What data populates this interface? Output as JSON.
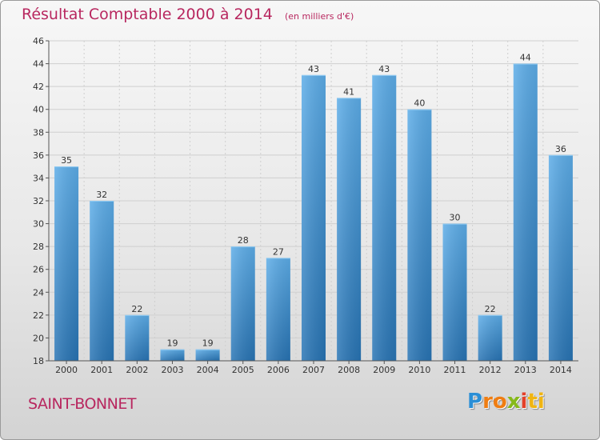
{
  "chart_data": {
    "type": "bar",
    "title": "Résultat Comptable 2000 à 2014",
    "subtitle": "(en milliers d'€)",
    "categories": [
      "2000",
      "2001",
      "2002",
      "2003",
      "2004",
      "2005",
      "2006",
      "2007",
      "2008",
      "2009",
      "2010",
      "2011",
      "2012",
      "2013",
      "2014"
    ],
    "values": [
      35,
      32,
      22,
      19,
      19,
      28,
      27,
      43,
      41,
      43,
      40,
      30,
      22,
      44,
      36
    ],
    "ylim": [
      18,
      46
    ],
    "yticks": [
      18,
      20,
      22,
      24,
      26,
      28,
      30,
      32,
      34,
      36,
      38,
      40,
      42,
      44,
      46
    ],
    "xlabel": "",
    "ylabel": "",
    "grid": true,
    "bar_color_top": "#5dade8",
    "bar_color_bottom": "#2874b4"
  },
  "commune": "SAINT-BONNET",
  "logo": {
    "letters": [
      "P",
      "ro",
      "x",
      "i",
      "ti"
    ],
    "colors": [
      "#2b8fd6",
      "#ef7d12",
      "#86b91a",
      "#e3402a",
      "#f0b512"
    ]
  }
}
